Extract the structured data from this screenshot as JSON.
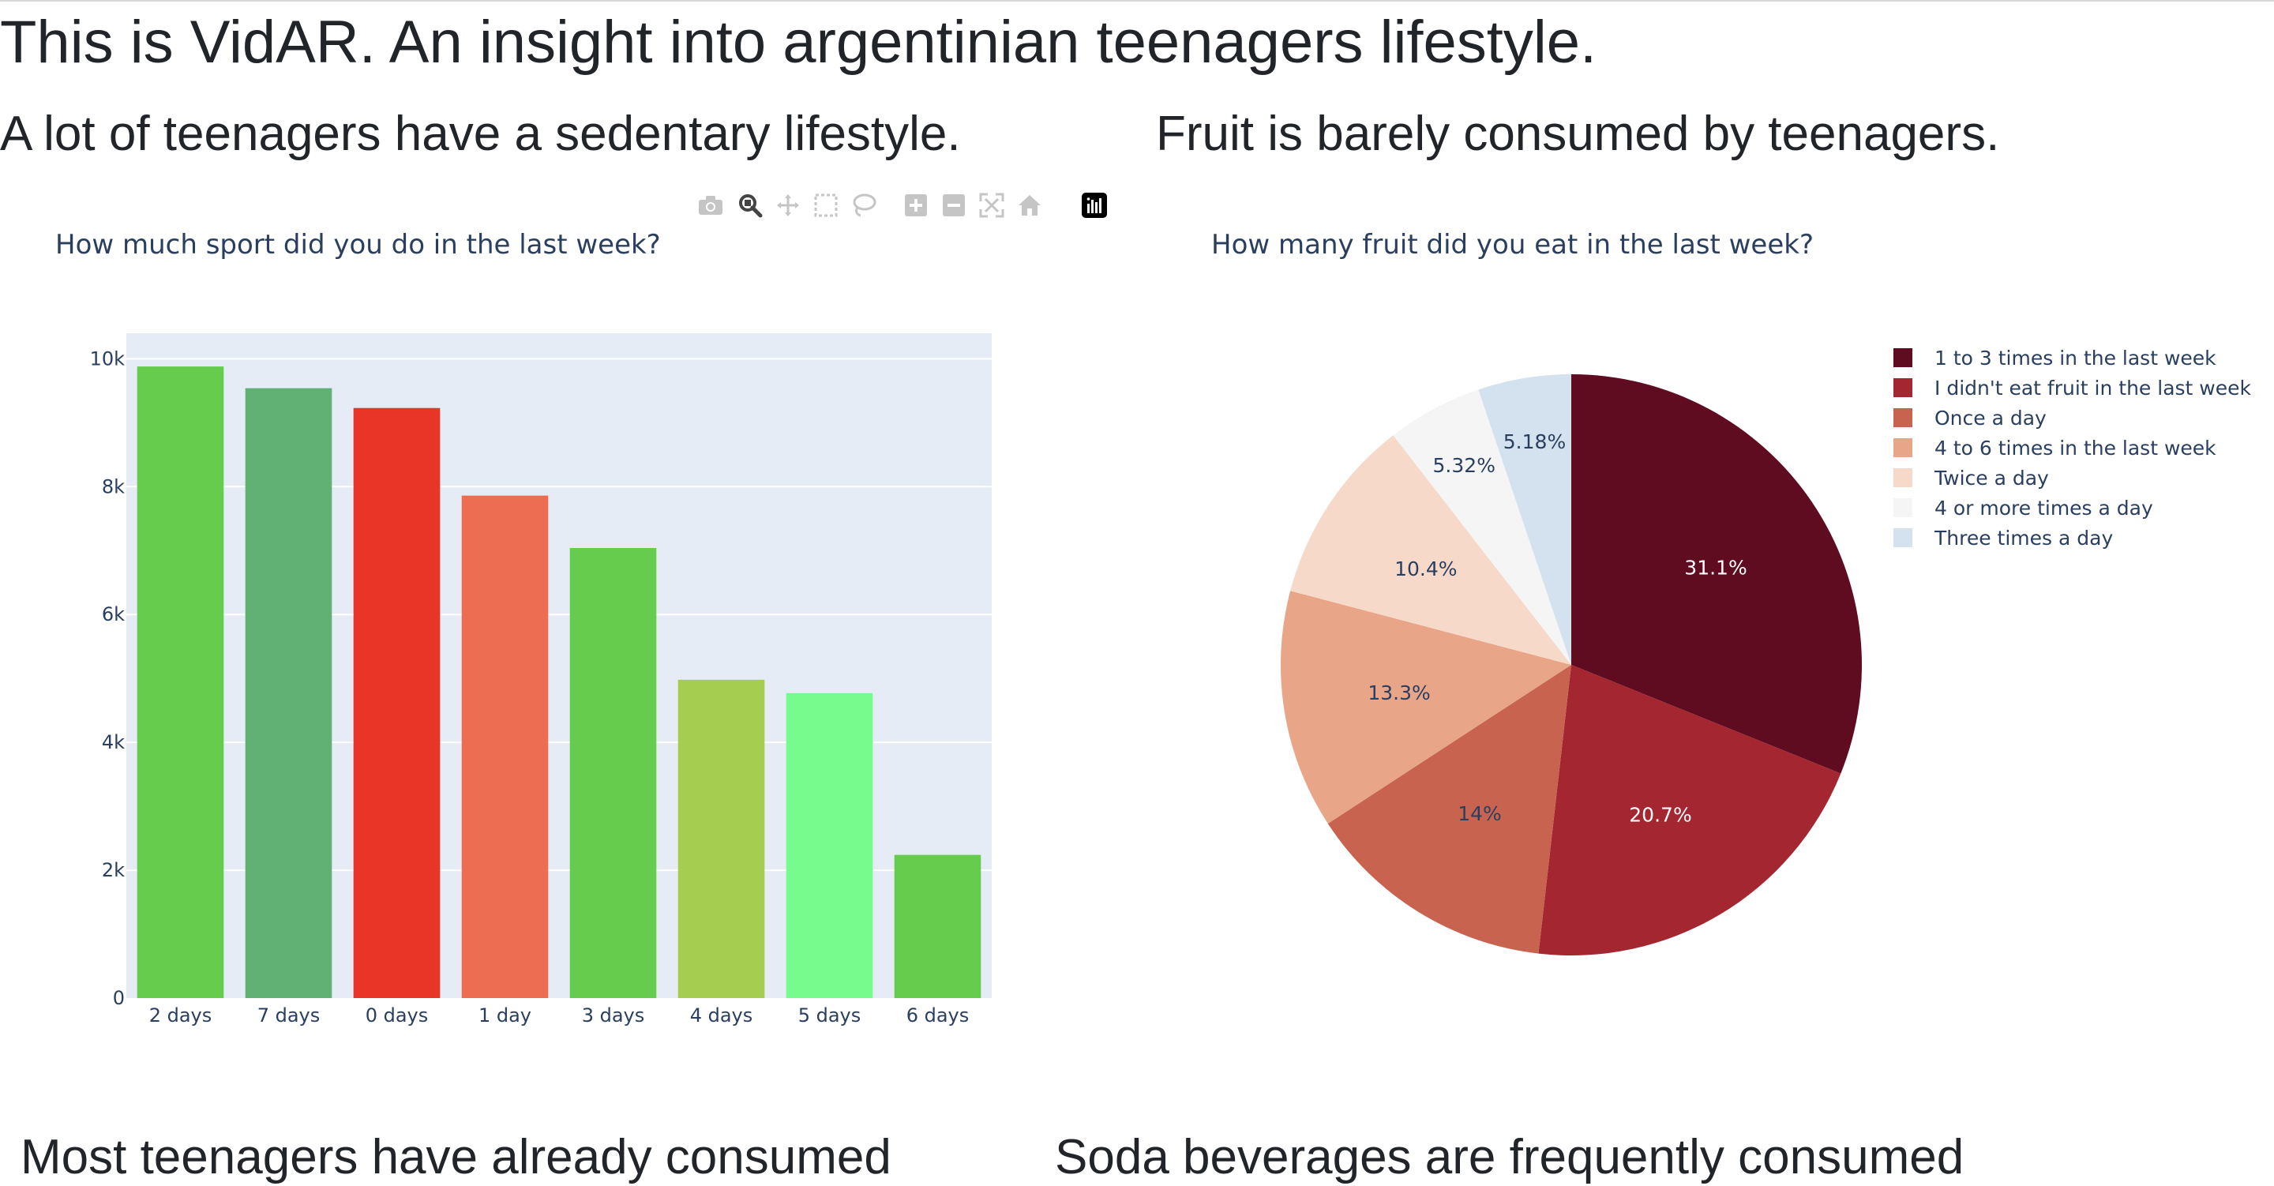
{
  "page": {
    "title": "This is VidAR. An insight into argentinian teenagers lifestyle.",
    "sections": {
      "sport_heading": "A lot of teenagers have a sedentary lifestyle.",
      "fruit_heading": "Fruit is barely consumed by teenagers.",
      "bottom_left_heading": "Most teenagers have already consumed",
      "bottom_right_heading": "Soda beverages are frequently consumed"
    }
  },
  "modebar": {
    "buttons": [
      {
        "name": "camera-icon",
        "title": "Download plot as a png"
      },
      {
        "name": "zoom-icon",
        "title": "Zoom"
      },
      {
        "name": "pan-icon",
        "title": "Pan"
      },
      {
        "name": "box-select-icon",
        "title": "Box Select"
      },
      {
        "name": "lasso-select-icon",
        "title": "Lasso Select"
      },
      {
        "name": "zoom-in-icon",
        "title": "Zoom in"
      },
      {
        "name": "zoom-out-icon",
        "title": "Zoom out"
      },
      {
        "name": "autoscale-icon",
        "title": "Autoscale"
      },
      {
        "name": "reset-axes-icon",
        "title": "Reset axes"
      },
      {
        "name": "plotly-logo-icon",
        "title": "Produced with Plotly"
      }
    ]
  },
  "chart_data": [
    {
      "type": "bar",
      "title": "How much sport did you do in the last week?",
      "xlabel": "",
      "ylabel": "",
      "categories": [
        "2 days",
        "7 days",
        "0 days",
        "1 day",
        "3 days",
        "4 days",
        "5 days",
        "6 days"
      ],
      "values": [
        9880,
        9540,
        9230,
        7860,
        7040,
        4980,
        4770,
        2240
      ],
      "colors": [
        "#66cc4d",
        "#61b074",
        "#e93428",
        "#ed6d53",
        "#66cc4d",
        "#a5cd50",
        "#77fb8c",
        "#66cc4d"
      ],
      "ylim": [
        0,
        10400
      ],
      "yticks": [
        0,
        2000,
        4000,
        6000,
        8000,
        10000
      ],
      "ytick_labels": [
        "0",
        "2k",
        "4k",
        "6k",
        "8k",
        "10k"
      ],
      "grid": true,
      "plot_bgcolor": "#e5ecf6"
    },
    {
      "type": "pie",
      "title": "How many fruit did you eat in the last week?",
      "labels": [
        "1 to 3 times in the last week",
        "I didn't eat fruit in the last week",
        "Once a day",
        "4 to 6 times in the last week",
        "Twice a day",
        "4 or more times a day",
        "Three times a day"
      ],
      "values": [
        31.1,
        20.7,
        14.0,
        13.3,
        10.4,
        5.32,
        5.18
      ],
      "text_labels": [
        "31.1%",
        "20.7%",
        "14%",
        "13.3%",
        "10.4%",
        "5.32%",
        "5.18%"
      ],
      "colors": [
        "#5f0c21",
        "#a42630",
        "#c7634f",
        "#e8a588",
        "#f6d9c8",
        "#f5f5f5",
        "#d3e2ee"
      ],
      "text_colors": [
        "#ffffff",
        "#ffffff",
        "#2a3f5f",
        "#2a3f5f",
        "#2a3f5f",
        "#2a3f5f",
        "#2a3f5f"
      ],
      "direction": "clockwise",
      "legend_position": "right"
    }
  ]
}
